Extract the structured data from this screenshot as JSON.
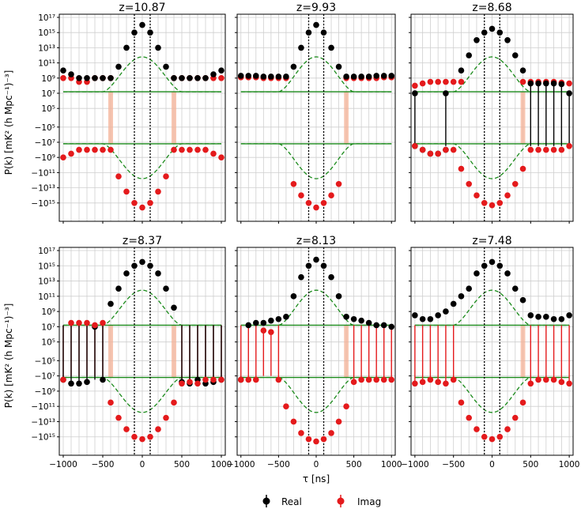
{
  "figure": {
    "ylabel": "P(k) [mK² (h Mpc⁻¹)⁻³]",
    "xlabel": "τ [ns]",
    "legend": [
      {
        "label": "Real",
        "color": "#000000"
      },
      {
        "label": "Imag",
        "color": "#e41a1c"
      }
    ]
  },
  "colors": {
    "real": "#000000",
    "imag": "#e41a1c",
    "bound": "#1a8a1a",
    "shade": "#f4b197",
    "grid": "#cfcfcf"
  },
  "chart_data": [
    {
      "type": "scatter",
      "title": "z=10.87",
      "x": [
        -1000,
        -900,
        -800,
        -700,
        -600,
        -500,
        -400,
        -300,
        -200,
        -100,
        0,
        100,
        200,
        300,
        400,
        500,
        600,
        700,
        800,
        900,
        1000
      ],
      "real_log": [
        10,
        9.5,
        9,
        9,
        9,
        9,
        9,
        10.5,
        13,
        15,
        16,
        15,
        13,
        10.5,
        9,
        9,
        9,
        9,
        9,
        9.5,
        10
      ],
      "imag_log": [
        -9,
        -8.5,
        -8,
        -8,
        -8,
        -8,
        -8,
        -11.5,
        -13.5,
        -15,
        -15.6,
        -15,
        -13.5,
        -11.5,
        -8,
        -8,
        -8,
        -8,
        -8,
        -8.5,
        -9
      ],
      "imag_top": [
        9,
        9,
        8.5,
        8.5,
        9,
        9,
        9,
        null,
        null,
        null,
        null,
        null,
        null,
        null,
        9,
        9,
        9,
        9,
        9,
        9,
        9
      ],
      "real_bottom": [
        null,
        null,
        null,
        null,
        null,
        null,
        null,
        null,
        null,
        null,
        null,
        null,
        null,
        null,
        null,
        null,
        null,
        null,
        null,
        null,
        null
      ],
      "shaded_tau": [
        [
          -430,
          -370
        ],
        [
          370,
          430
        ]
      ],
      "noise_log": 7.2,
      "ylim_log": [
        -17,
        17
      ],
      "xlim": [
        -1050,
        1050
      ]
    },
    {
      "type": "scatter",
      "title": "z=9.93",
      "x": [
        -1000,
        -900,
        -800,
        -700,
        -600,
        -500,
        -400,
        -300,
        -200,
        -100,
        0,
        100,
        200,
        300,
        400,
        500,
        600,
        700,
        800,
        900,
        1000
      ],
      "real_log": [
        9.3,
        9.3,
        9.3,
        9.2,
        9.2,
        9.2,
        9.2,
        10.5,
        13,
        15,
        16,
        15,
        13,
        10.5,
        9.2,
        9.2,
        9.2,
        9.2,
        9.3,
        9.3,
        9.3
      ],
      "imag_log": [
        null,
        null,
        null,
        null,
        null,
        null,
        null,
        -12.5,
        -14,
        -15,
        -15.6,
        -15,
        -14,
        -12.5,
        null,
        null,
        null,
        null,
        null,
        null,
        null
      ],
      "imag_top": [
        9.1,
        9.1,
        9.1,
        9,
        9,
        9,
        9,
        null,
        null,
        null,
        null,
        null,
        null,
        null,
        9,
        9,
        9,
        9,
        9,
        9.1,
        9.1
      ],
      "real_bottom": [],
      "shaded_tau": [
        [
          370,
          430
        ]
      ],
      "noise_log": 7.2,
      "ylim_log": [
        -17,
        17
      ],
      "xlim": [
        -1050,
        1050
      ]
    },
    {
      "type": "scatter",
      "title": "z=8.68",
      "x": [
        -1000,
        -900,
        -800,
        -700,
        -600,
        -500,
        -400,
        -300,
        -200,
        -100,
        0,
        100,
        200,
        300,
        400,
        500,
        600,
        700,
        800,
        900,
        1000
      ],
      "real_log": [
        7,
        null,
        null,
        null,
        7,
        null,
        10,
        12,
        14,
        15,
        15.5,
        15,
        14,
        12,
        10,
        8.3,
        8.3,
        8.3,
        8.3,
        8.2,
        7
      ],
      "imag_log": [
        -7.5,
        -8,
        -8.5,
        -8.5,
        -8,
        -8,
        -10.5,
        -12.5,
        -14,
        -15,
        -15.3,
        -15,
        -14,
        -12.5,
        -10.5,
        -8,
        -8,
        -8,
        -8,
        -8,
        -7.5
      ],
      "imag_top": [
        8,
        8.3,
        8.5,
        8.5,
        8.5,
        8.5,
        8.5,
        null,
        null,
        null,
        null,
        null,
        null,
        null,
        8.5,
        8.5,
        8.5,
        8.5,
        8.5,
        8.4,
        8.3
      ],
      "real_bottom": [
        -7.5,
        -8,
        -8.5,
        -8.5,
        -8
      ],
      "shaded_tau": [
        [
          370,
          430
        ]
      ],
      "noise_log": 7.2,
      "ylim_log": [
        -17,
        17
      ],
      "xlim": [
        -1050,
        1050
      ]
    },
    {
      "type": "scatter",
      "title": "z=8.37",
      "x": [
        -1000,
        -900,
        -800,
        -700,
        -600,
        -500,
        -400,
        -300,
        -200,
        -100,
        0,
        100,
        200,
        300,
        400,
        500,
        600,
        700,
        800,
        900,
        1000
      ],
      "real_log": [
        -7.5,
        -8,
        -8,
        -7.8,
        7,
        -7.5,
        10,
        12,
        14,
        15,
        15.5,
        15,
        14,
        12,
        9.5,
        -7.8,
        -8,
        -7.5,
        -8,
        -7.8,
        -7.5
      ],
      "imag_log": [
        -7.5,
        7.5,
        7.5,
        7.5,
        7.2,
        7.5,
        -10.5,
        -12.5,
        -14,
        -15,
        -15.3,
        -15,
        -14,
        -12.5,
        -10.5,
        -8,
        -7.8,
        -8,
        -7.5,
        -7.5,
        -7.5
      ],
      "imag_top": [],
      "real_bottom": [],
      "shaded_tau": [
        [
          -430,
          -370
        ],
        [
          370,
          430
        ]
      ],
      "noise_log": 7.2,
      "ylim_log": [
        -17,
        17
      ],
      "xlim": [
        -1050,
        1050
      ]
    },
    {
      "type": "scatter",
      "title": "z=8.13",
      "x": [
        -1000,
        -900,
        -800,
        -700,
        -600,
        -500,
        -400,
        -300,
        -200,
        -100,
        0,
        100,
        200,
        300,
        400,
        500,
        600,
        700,
        800,
        900,
        1000
      ],
      "real_log": [
        -7.5,
        7.2,
        7.5,
        7.5,
        7.8,
        8,
        8.3,
        11,
        13.5,
        15,
        15.8,
        15,
        13.5,
        11,
        8.3,
        8,
        7.8,
        7.5,
        7.2,
        7.2,
        7
      ],
      "imag_log": [
        -7.5,
        -7.5,
        -7.5,
        6.5,
        6.3,
        -7.5,
        -11,
        -13,
        -14.5,
        -15.3,
        -15.6,
        -15.3,
        -14.5,
        -13,
        -11,
        -7.8,
        -7.5,
        -7.5,
        -7.5,
        -7.5,
        -7.5
      ],
      "imag_top": [],
      "real_bottom": [],
      "shaded_tau": [
        [
          370,
          430
        ]
      ],
      "noise_log": 7.2,
      "ylim_log": [
        -17,
        17
      ],
      "xlim": [
        -1050,
        1050
      ]
    },
    {
      "type": "scatter",
      "title": "z=7.48",
      "x": [
        -1000,
        -900,
        -800,
        -700,
        -600,
        -500,
        -400,
        -300,
        -200,
        -100,
        0,
        100,
        200,
        300,
        400,
        500,
        600,
        700,
        800,
        900,
        1000
      ],
      "real_log": [
        8.5,
        8,
        8,
        8.5,
        9,
        10,
        11,
        12,
        14,
        15,
        15.5,
        15,
        14,
        12,
        10.5,
        8.5,
        8.3,
        8.3,
        8,
        8,
        8.5
      ],
      "imag_log": [
        -8,
        -7.8,
        -7.5,
        -7.8,
        -8,
        -7.5,
        -10.5,
        -12.5,
        -14,
        -15,
        -15.3,
        -15,
        -14,
        -12.5,
        -10.5,
        -8,
        -7.5,
        -7.5,
        -7.5,
        -7.8,
        -8
      ],
      "imag_top": [],
      "real_bottom": [],
      "shaded_tau": [
        [
          370,
          430
        ]
      ],
      "noise_log": 7.2,
      "ylim_log": [
        -17,
        17
      ],
      "xlim": [
        -1050,
        1050
      ]
    }
  ],
  "axes": {
    "ytick_labels": [
      "10¹⁷",
      "10¹⁵",
      "10¹³",
      "10¹¹",
      "10⁹",
      "10⁷",
      "10⁵",
      "−10⁵",
      "−10⁷",
      "−10⁹",
      "−10¹¹",
      "−10¹³",
      "−10¹⁵"
    ],
    "ytick_logs": [
      17,
      15,
      13,
      11,
      9,
      7,
      5,
      -5,
      -7,
      -9,
      -11,
      -13,
      -15
    ],
    "xtick_labels": [
      "−1000",
      "−500",
      "0",
      "500",
      "1000"
    ],
    "xtick_values": [
      -1000,
      -500,
      0,
      500,
      1000
    ]
  }
}
